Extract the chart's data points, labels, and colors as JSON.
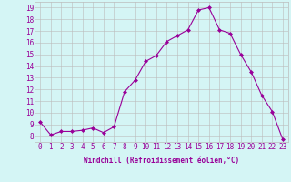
{
  "x": [
    0,
    1,
    2,
    3,
    4,
    5,
    6,
    7,
    8,
    9,
    10,
    11,
    12,
    13,
    14,
    15,
    16,
    17,
    18,
    19,
    20,
    21,
    22,
    23
  ],
  "y": [
    9.2,
    8.1,
    8.4,
    8.4,
    8.5,
    8.7,
    8.3,
    8.8,
    11.8,
    12.8,
    14.4,
    14.9,
    16.1,
    16.6,
    17.1,
    18.8,
    19.0,
    17.1,
    16.8,
    15.0,
    13.5,
    11.5,
    10.1,
    7.7
  ],
  "line_color": "#990099",
  "marker": "D",
  "marker_size": 2,
  "bg_color": "#d4f5f5",
  "grid_color": "#bbbbbb",
  "xlabel": "Windchill (Refroidissement éolien,°C)",
  "xlabel_color": "#990099",
  "tick_color": "#990099",
  "xlim": [
    -0.5,
    23.5
  ],
  "ylim": [
    7.5,
    19.5
  ],
  "yticks": [
    8,
    9,
    10,
    11,
    12,
    13,
    14,
    15,
    16,
    17,
    18,
    19
  ],
  "xtick_labels": [
    "0",
    "1",
    "2",
    "3",
    "4",
    "5",
    "6",
    "7",
    "8",
    "9",
    "10",
    "11",
    "12",
    "13",
    "14",
    "15",
    "16",
    "17",
    "18",
    "19",
    "20",
    "21",
    "22",
    "23"
  ],
  "xlabel_fontsize": 5.5,
  "tick_fontsize": 5.5
}
